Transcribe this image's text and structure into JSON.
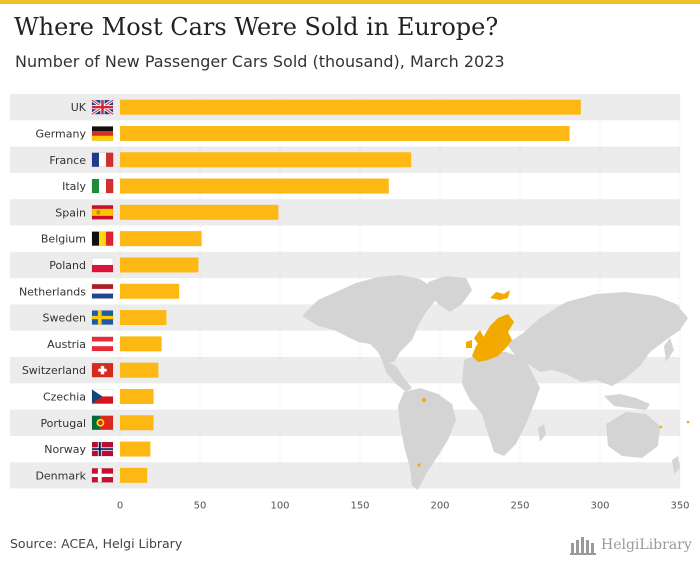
{
  "header": {
    "title": "Where Most Cars Were Sold in Europe?",
    "subtitle": "Number of New Passenger Cars Sold (thousand), March 2023"
  },
  "footer": {
    "source": "Source: ACEA, Helgi Library",
    "brand": "HelgiLibrary"
  },
  "icons": [
    "uk-flag-icon",
    "germany-flag-icon",
    "france-flag-icon",
    "italy-flag-icon",
    "spain-flag-icon",
    "belgium-flag-icon",
    "poland-flag-icon",
    "netherlands-flag-icon",
    "sweden-flag-icon",
    "austria-flag-icon",
    "switzerland-flag-icon",
    "czechia-flag-icon",
    "portugal-flag-icon",
    "norway-flag-icon",
    "denmark-flag-icon",
    "world-map-icon",
    "helgi-library-logo-icon"
  ],
  "colors": {
    "bar": "#fdb813",
    "row_band": "#ececec",
    "map_land": "#d4d4d4",
    "map_highlight": "#f2a900",
    "top_band": "#f0c02a"
  },
  "chart_data": {
    "type": "bar",
    "orientation": "horizontal",
    "categories": [
      "UK",
      "Germany",
      "France",
      "Italy",
      "Spain",
      "Belgium",
      "Poland",
      "Netherlands",
      "Sweden",
      "Austria",
      "Switzerland",
      "Czechia",
      "Portugal",
      "Norway",
      "Denmark"
    ],
    "values": [
      288,
      281,
      182,
      168,
      99,
      51,
      49,
      37,
      29,
      26,
      24,
      21,
      21,
      19,
      17
    ],
    "xlim": [
      0,
      350
    ],
    "xticks": [
      0,
      50,
      100,
      150,
      200,
      250,
      300,
      350
    ],
    "grid": true
  }
}
